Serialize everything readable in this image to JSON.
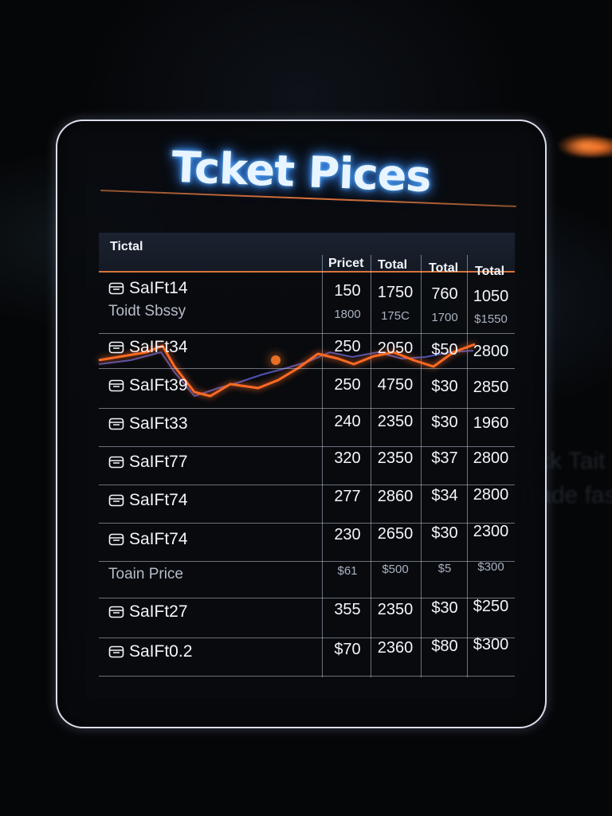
{
  "title": "Tcket Pices",
  "background_text": [
    "Click Tait",
    "Trade fas"
  ],
  "columns": {
    "name": "Tictal",
    "price": "Pricet",
    "total1": "Total",
    "total2": "Total",
    "total3": "Total"
  },
  "rows": [
    {
      "name": "SaIFt14",
      "price": "150",
      "total1": "1750",
      "total2": "760",
      "total3": "1050",
      "sub_name": "Toidt Sbssy",
      "sub_price": "1800",
      "sub_total1": "175C",
      "sub_total2": "1700",
      "sub_total3": "$1550"
    },
    {
      "name": "SaIFt34",
      "price": "250",
      "total1": "2050",
      "total2": "$50",
      "total3": "2800"
    },
    {
      "name": "SaIFt39",
      "price": "250",
      "total1": "4750",
      "total2": "$30",
      "total3": "2850"
    },
    {
      "name": "SaIFt33",
      "price": "240",
      "total1": "2350",
      "total2": "$30",
      "total3": "1960"
    },
    {
      "name": "SaIFt77",
      "price": "320",
      "total1": "2350",
      "total2": "$37",
      "total3": "2800"
    },
    {
      "name": "SaIFt74",
      "price": "277",
      "total1": "2860",
      "total2": "$34",
      "total3": "2800"
    },
    {
      "name": "SaIFt74",
      "price": "230",
      "total1": "2650",
      "total2": "$30",
      "total3": "2300",
      "sub_name": "Toain Price",
      "sub_price": "$61",
      "sub_total1": "$500",
      "sub_total2": "$5",
      "sub_total3": "$300"
    },
    {
      "name": "SaIFt27",
      "price": "355",
      "total1": "2350",
      "total2": "$30",
      "total3": "$250"
    },
    {
      "name": "SaIFt0.2",
      "price": "$70",
      "total1": "2360",
      "total2": "$80",
      "total3": "$300"
    }
  ],
  "colors": {
    "accent_orange": "#e8662a",
    "title_glow": "#3a8cff",
    "trend_blue": "#5a5fd0"
  },
  "icons": {
    "row_icon": "ticket-icon"
  }
}
